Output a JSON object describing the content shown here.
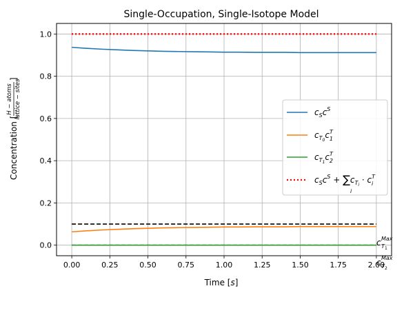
{
  "chart_data": {
    "type": "line",
    "title": "Single-Occupation, Single-Isotope Model",
    "xlabel": "Time [s]",
    "ylabel": "Concentration [H − atoms / lattice − sites]",
    "xlim": [
      -0.1,
      2.1
    ],
    "ylim": [
      -0.05,
      1.05
    ],
    "grid": true,
    "legend_position": "center-right",
    "x_ticks": [
      0.0,
      0.25,
      0.5,
      0.75,
      1.0,
      1.25,
      1.5,
      1.75,
      2.0
    ],
    "x_tick_labels": [
      "0.00",
      "0.25",
      "0.50",
      "0.75",
      "1.00",
      "1.25",
      "1.50",
      "1.75",
      "2.00"
    ],
    "y_ticks": [
      0.0,
      0.2,
      0.4,
      0.6,
      0.8,
      1.0
    ],
    "y_tick_labels": [
      "0.0",
      "0.2",
      "0.4",
      "0.6",
      "0.8",
      "1.0"
    ],
    "series": [
      {
        "name": "c_S c^S",
        "color": "#1f77b4",
        "style": "solid",
        "x": [
          0.0,
          0.1,
          0.2,
          0.3,
          0.4,
          0.5,
          0.6,
          0.7,
          0.8,
          0.9,
          1.0,
          1.1,
          1.2,
          1.3,
          1.4,
          1.5,
          1.6,
          1.7,
          1.8,
          1.9,
          2.0
        ],
        "y": [
          0.937,
          0.932,
          0.928,
          0.925,
          0.922,
          0.92,
          0.918,
          0.917,
          0.916,
          0.915,
          0.914,
          0.914,
          0.913,
          0.913,
          0.913,
          0.912,
          0.912,
          0.912,
          0.912,
          0.912,
          0.912
        ]
      },
      {
        "name": "c_T0 c_1^T",
        "color": "#ff7f0e",
        "style": "solid",
        "x": [
          0.0,
          0.1,
          0.2,
          0.3,
          0.4,
          0.5,
          0.6,
          0.7,
          0.8,
          0.9,
          1.0,
          1.1,
          1.2,
          1.3,
          1.4,
          1.5,
          1.6,
          1.7,
          1.8,
          1.9,
          2.0
        ],
        "y": [
          0.063,
          0.068,
          0.072,
          0.075,
          0.078,
          0.08,
          0.082,
          0.083,
          0.084,
          0.085,
          0.086,
          0.086,
          0.087,
          0.087,
          0.087,
          0.088,
          0.088,
          0.088,
          0.088,
          0.088,
          0.088
        ]
      },
      {
        "name": "c_T1 c_2^T",
        "color": "#2ca02c",
        "style": "solid",
        "x": [
          0.0,
          2.0
        ],
        "y": [
          0.0,
          0.0
        ]
      },
      {
        "name": "c_S c^S + Σ_i c_Ti · c_i^T",
        "color": "#ff0000",
        "style": "dotted",
        "x": [
          0.0,
          2.0
        ],
        "y": [
          1.0,
          1.0
        ]
      },
      {
        "name": "",
        "color": "#000000",
        "style": "dashed",
        "x": [
          0.0,
          2.0
        ],
        "y": [
          0.1,
          0.1
        ]
      },
      {
        "name": "",
        "color": "#000000",
        "style": "dashed",
        "x": [
          0.0,
          2.0
        ],
        "y": [
          0.0,
          0.0
        ]
      }
    ],
    "annotations": [
      {
        "text": "c_T1^Max",
        "x": 2.0,
        "y": 0.1
      },
      {
        "text": "c_T2^Max",
        "x": 2.0,
        "y": 0.0
      }
    ]
  }
}
